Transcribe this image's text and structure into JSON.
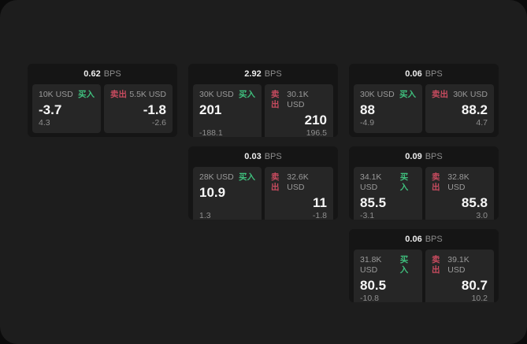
{
  "labels": {
    "bps_unit": "BPS",
    "buy": "买入",
    "sell": "卖出"
  },
  "colors": {
    "buy_green": "#3fbf7d",
    "sell_red": "#c74b5f",
    "surface": "#1d1d1d",
    "card_background": "#151515",
    "panel_background": "#262626"
  },
  "cards": [
    {
      "bps": "0.62",
      "buy": {
        "amount": "10K USD",
        "price": "-3.7",
        "delta": "4.3"
      },
      "sell": {
        "amount": "5.5K USD",
        "price": "-1.8",
        "delta": "-2.6"
      }
    },
    {
      "bps": "2.92",
      "buy": {
        "amount": "30K USD",
        "price": "201",
        "delta": "-188.1"
      },
      "sell": {
        "amount": "30.1K USD",
        "price": "210",
        "delta": "196.5"
      }
    },
    {
      "bps": "0.06",
      "buy": {
        "amount": "30K USD",
        "price": "88",
        "delta": "-4.9"
      },
      "sell": {
        "amount": "30K USD",
        "price": "88.2",
        "delta": "4.7"
      }
    },
    {
      "bps": "0.03",
      "buy": {
        "amount": "28K USD",
        "price": "10.9",
        "delta": "1.3"
      },
      "sell": {
        "amount": "32.6K USD",
        "price": "11",
        "delta": "-1.8"
      }
    },
    {
      "bps": "0.09",
      "buy": {
        "amount": "34.1K USD",
        "price": "85.5",
        "delta": "-3.1"
      },
      "sell": {
        "amount": "32.8K USD",
        "price": "85.8",
        "delta": "3.0"
      }
    },
    {
      "bps": "0.06",
      "buy": {
        "amount": "31.8K USD",
        "price": "80.5",
        "delta": "-10.8"
      },
      "sell": {
        "amount": "39.1K USD",
        "price": "80.7",
        "delta": "10.2"
      }
    }
  ]
}
